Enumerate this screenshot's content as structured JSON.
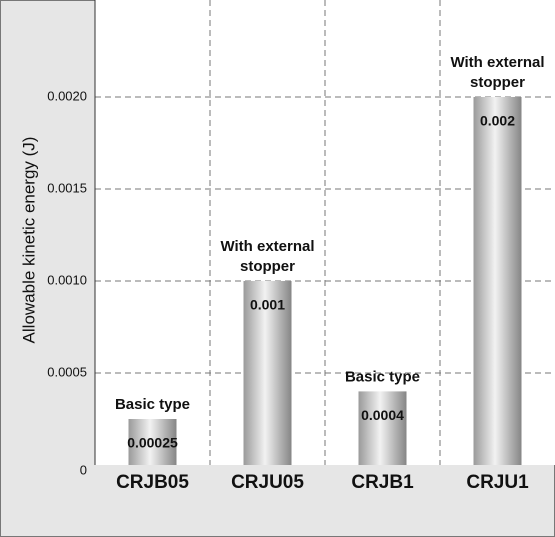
{
  "chart_data": {
    "type": "bar",
    "y_label": "Allowable kinetic energy (J)",
    "categories": [
      "CRJB05",
      "CRJU05",
      "CRJB1",
      "CRJU1"
    ],
    "values": [
      0.00025,
      0.001,
      0.0004,
      0.002
    ],
    "bar_notes": [
      [
        "Basic type"
      ],
      [
        "With external",
        "stopper"
      ],
      [
        "Basic type"
      ],
      [
        "With external",
        "stopper"
      ]
    ],
    "ylim": [
      0,
      0.0025
    ],
    "yticks": [
      0,
      {
        "value": 0.0005,
        "label": "0.0005"
      },
      {
        "value": 0.001,
        "label": "0.0010"
      },
      {
        "value": 0.0015,
        "label": "0.0015"
      },
      {
        "value": 0.002,
        "label": "0.0020"
      }
    ],
    "grid": true
  }
}
